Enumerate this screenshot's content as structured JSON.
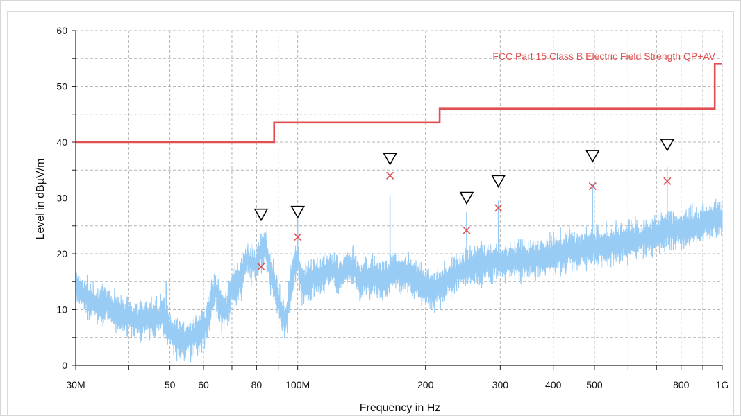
{
  "chart_data": {
    "type": "line",
    "xlabel": "Frequency in Hz",
    "ylabel": "Level in dBµV/m",
    "x_scale": "log",
    "xlim_hz": [
      30000000,
      1000000000
    ],
    "ylim": [
      0,
      60
    ],
    "grid": true,
    "x_ticks": [
      {
        "value": 30000000,
        "label": "30M"
      },
      {
        "value": 50000000,
        "label": "50"
      },
      {
        "value": 60000000,
        "label": "60"
      },
      {
        "value": 80000000,
        "label": "80"
      },
      {
        "value": 100000000,
        "label": "100M"
      },
      {
        "value": 200000000,
        "label": "200"
      },
      {
        "value": 300000000,
        "label": "300"
      },
      {
        "value": 400000000,
        "label": "400"
      },
      {
        "value": 500000000,
        "label": "500"
      },
      {
        "value": 800000000,
        "label": "800"
      },
      {
        "value": 1000000000,
        "label": "1G"
      }
    ],
    "x_minor_ticks": [
      40000000,
      70000000,
      90000000,
      600000000,
      700000000,
      900000000
    ],
    "y_ticks": [
      0,
      10,
      20,
      30,
      40,
      50,
      60
    ],
    "limit_line": {
      "name": "FCC Part 15 Class B Electric Field Strength QP+AV",
      "color": "#e05050",
      "points": [
        {
          "x": 30000000,
          "y": 40
        },
        {
          "x": 88000000,
          "y": 40
        },
        {
          "x": 88000000,
          "y": 43.5
        },
        {
          "x": 216000000,
          "y": 43.5
        },
        {
          "x": 216000000,
          "y": 46
        },
        {
          "x": 960000000,
          "y": 46
        },
        {
          "x": 960000000,
          "y": 54
        },
        {
          "x": 1000000000,
          "y": 54
        }
      ]
    },
    "spectrum": {
      "color": "#99ccf5",
      "points": [
        [
          30000000,
          14.5
        ],
        [
          31000000,
          13
        ],
        [
          32000000,
          12
        ],
        [
          34000000,
          11
        ],
        [
          36000000,
          10.5
        ],
        [
          38000000,
          9
        ],
        [
          40000000,
          8.5
        ],
        [
          42000000,
          8
        ],
        [
          44000000,
          8.5
        ],
        [
          46000000,
          8.2
        ],
        [
          48000000,
          9
        ],
        [
          50000000,
          6.5
        ],
        [
          52000000,
          5
        ],
        [
          54000000,
          4.5
        ],
        [
          56000000,
          5
        ],
        [
          58000000,
          5.5
        ],
        [
          60000000,
          6.5
        ],
        [
          62000000,
          10
        ],
        [
          64000000,
          13.5
        ],
        [
          66000000,
          10
        ],
        [
          68000000,
          9.5
        ],
        [
          70000000,
          14
        ],
        [
          72000000,
          14.5
        ],
        [
          74000000,
          16
        ],
        [
          76000000,
          19.5
        ],
        [
          78000000,
          18
        ],
        [
          80000000,
          18
        ],
        [
          82000000,
          20.5
        ],
        [
          84000000,
          21.5
        ],
        [
          86000000,
          17
        ],
        [
          88000000,
          14.5
        ],
        [
          90000000,
          12
        ],
        [
          92000000,
          9
        ],
        [
          94000000,
          8.5
        ],
        [
          96000000,
          13
        ],
        [
          98000000,
          17
        ],
        [
          100000000,
          20
        ],
        [
          102000000,
          14.5
        ],
        [
          106000000,
          15
        ],
        [
          110000000,
          16
        ],
        [
          115000000,
          16.5
        ],
        [
          120000000,
          17.5
        ],
        [
          125000000,
          16
        ],
        [
          130000000,
          17.5
        ],
        [
          135000000,
          18
        ],
        [
          140000000,
          15
        ],
        [
          145000000,
          15.5
        ],
        [
          150000000,
          16
        ],
        [
          155000000,
          15
        ],
        [
          160000000,
          15
        ],
        [
          165000000,
          16
        ],
        [
          170000000,
          17.5
        ],
        [
          175000000,
          16
        ],
        [
          180000000,
          16.5
        ],
        [
          190000000,
          15
        ],
        [
          200000000,
          14
        ],
        [
          210000000,
          13.5
        ],
        [
          220000000,
          14.5
        ],
        [
          230000000,
          15.5
        ],
        [
          240000000,
          17
        ],
        [
          250000000,
          17.5
        ],
        [
          265000000,
          18
        ],
        [
          280000000,
          18.5
        ],
        [
          300000000,
          18.5
        ],
        [
          320000000,
          18.5
        ],
        [
          340000000,
          19
        ],
        [
          360000000,
          19
        ],
        [
          380000000,
          19.5
        ],
        [
          400000000,
          20
        ],
        [
          420000000,
          20.5
        ],
        [
          440000000,
          21
        ],
        [
          460000000,
          20.5
        ],
        [
          480000000,
          21
        ],
        [
          500000000,
          21.5
        ],
        [
          540000000,
          21.5
        ],
        [
          580000000,
          22
        ],
        [
          620000000,
          22.5
        ],
        [
          660000000,
          23
        ],
        [
          700000000,
          23.5
        ],
        [
          740000000,
          24
        ],
        [
          780000000,
          24
        ],
        [
          820000000,
          24.5
        ],
        [
          860000000,
          25
        ],
        [
          900000000,
          25.5
        ],
        [
          950000000,
          26
        ],
        [
          1000000000,
          26.5
        ]
      ],
      "spikes": [
        {
          "x": 49000000,
          "y": 15
        },
        {
          "x": 82000000,
          "y": 23.5
        },
        {
          "x": 84000000,
          "y": 23.5
        },
        {
          "x": 100000000,
          "y": 26.5
        },
        {
          "x": 165000000,
          "y": 30.5
        },
        {
          "x": 250000000,
          "y": 27.5
        },
        {
          "x": 297000000,
          "y": 29.5
        },
        {
          "x": 495000000,
          "y": 32.5
        },
        {
          "x": 742000000,
          "y": 35.5
        }
      ]
    },
    "peak_markers": [
      {
        "x": 82000000,
        "y": 27
      },
      {
        "x": 100000000,
        "y": 27.5
      },
      {
        "x": 165000000,
        "y": 37
      },
      {
        "x": 250000000,
        "y": 30
      },
      {
        "x": 297000000,
        "y": 33
      },
      {
        "x": 495000000,
        "y": 37.5
      },
      {
        "x": 742000000,
        "y": 39.5
      }
    ],
    "measurement_markers": [
      {
        "x": 82000000,
        "y": 17.7
      },
      {
        "x": 100000000,
        "y": 23
      },
      {
        "x": 165000000,
        "y": 34
      },
      {
        "x": 250000000,
        "y": 24.2
      },
      {
        "x": 297000000,
        "y": 28.2
      },
      {
        "x": 495000000,
        "y": 32.1
      },
      {
        "x": 742000000,
        "y": 33
      }
    ],
    "marker_colors": {
      "peak": "#000000",
      "measurement": "#e05050"
    }
  }
}
